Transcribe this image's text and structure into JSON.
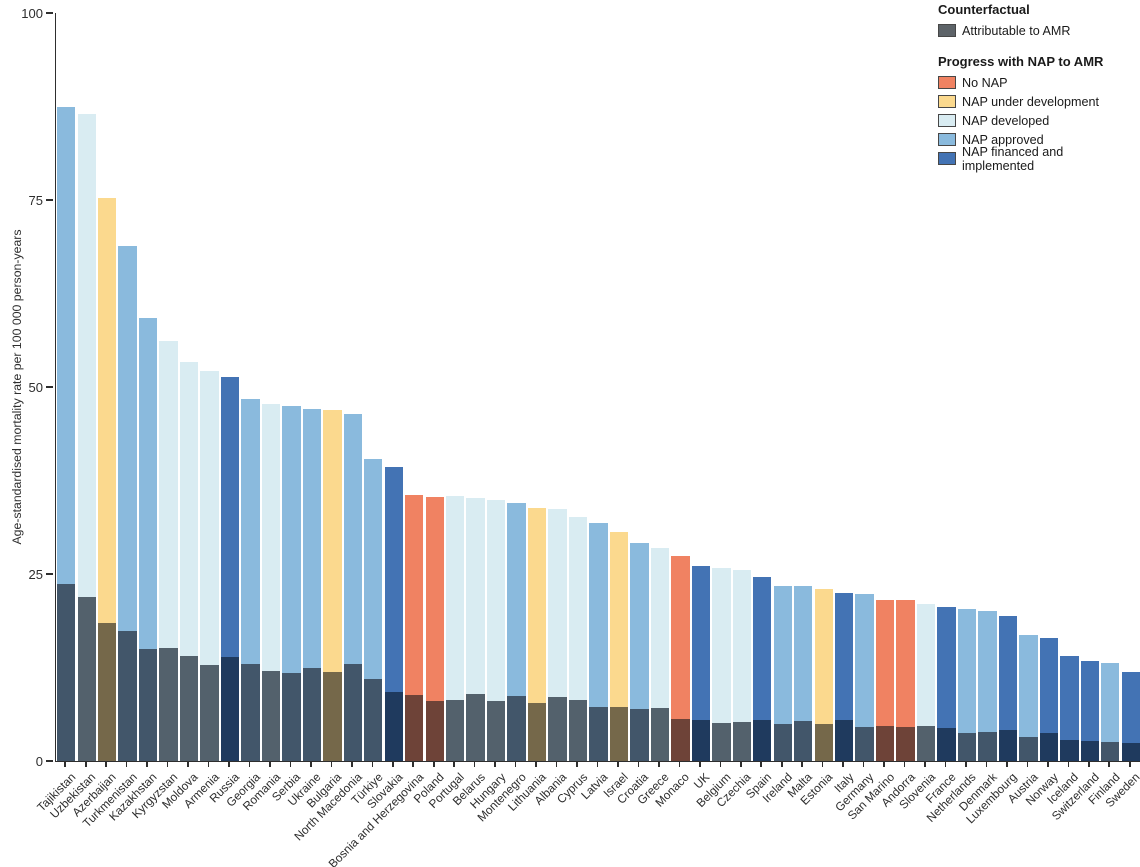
{
  "colors": {
    "axis": "#2e2e2e",
    "nap_fill": {
      "no_nap": "#f08262",
      "under_development": "#fbd98e",
      "developed": "#d9ecf2",
      "approved": "#8abadd",
      "financed": "#4373b4"
    },
    "attributable_overlay": {
      "no_nap": "#6e4338",
      "under_development": "#75684a",
      "developed": "#53616c",
      "approved": "#42566a",
      "financed": "#1f3a5e"
    },
    "attributable_legend_swatch": "#5d6368",
    "legend_swatch_border": "#474747"
  },
  "legend": {
    "counterfactual_title": "Counterfactual",
    "counterfactual_items": [
      {
        "key": "attributable",
        "label": "Attributable to AMR"
      }
    ],
    "nap_title": "Progress with NAP to AMR",
    "nap_items": [
      {
        "key": "no_nap",
        "label": "No NAP"
      },
      {
        "key": "under_development",
        "label": "NAP under development"
      },
      {
        "key": "developed",
        "label": "NAP developed"
      },
      {
        "key": "approved",
        "label": "NAP approved"
      },
      {
        "key": "financed",
        "label": "NAP financed and implemented"
      }
    ]
  },
  "chart_data": {
    "type": "bar",
    "subtype": "stacked-overlay",
    "title": "",
    "xlabel": "",
    "ylabel": "Age-standardised mortality rate per 100 000 person-years",
    "ylim": [
      0,
      100
    ],
    "yticks": [
      0,
      25,
      50,
      75,
      100
    ],
    "grid": false,
    "legend_position": "top-right",
    "categories": [
      "Tajikistan",
      "Uzbekistan",
      "Azerbaijan",
      "Turkmenistan",
      "Kazakhstan",
      "Kyrgyzstan",
      "Moldova",
      "Armenia",
      "Russia",
      "Georgia",
      "Romania",
      "Serbia",
      "Ukraine",
      "Bulgaria",
      "North Macedonia",
      "Türkiye",
      "Slovakia",
      "Bosnia and Herzegovina",
      "Poland",
      "Portugal",
      "Belarus",
      "Hungary",
      "Montenegro",
      "Lithuania",
      "Albania",
      "Cyprus",
      "Latvia",
      "Israel",
      "Croatia",
      "Greece",
      "Monaco",
      "UK",
      "Belgium",
      "Czechia",
      "Spain",
      "Ireland",
      "Malta",
      "Estonia",
      "Italy",
      "Germany",
      "San Marino",
      "Andorra",
      "Slovenia",
      "France",
      "Netherlands",
      "Denmark",
      "Luxembourg",
      "Austria",
      "Norway",
      "Iceland",
      "Switzerland",
      "Finland",
      "Sweden"
    ],
    "nap_status": [
      "approved",
      "developed",
      "under_development",
      "approved",
      "approved",
      "developed",
      "developed",
      "developed",
      "financed",
      "approved",
      "developed",
      "approved",
      "approved",
      "under_development",
      "approved",
      "approved",
      "financed",
      "no_nap",
      "no_nap",
      "developed",
      "developed",
      "developed",
      "approved",
      "under_development",
      "developed",
      "developed",
      "approved",
      "under_development",
      "approved",
      "developed",
      "no_nap",
      "financed",
      "developed",
      "developed",
      "financed",
      "approved",
      "approved",
      "under_development",
      "financed",
      "approved",
      "no_nap",
      "no_nap",
      "developed",
      "financed",
      "approved",
      "approved",
      "financed",
      "approved",
      "financed",
      "financed",
      "financed",
      "approved",
      "financed"
    ],
    "series": [
      {
        "name": "Counterfactual (total)",
        "values": [
          87.5,
          86.5,
          75.3,
          68.9,
          59.2,
          56.2,
          53.3,
          52.2,
          51.4,
          48.4,
          47.7,
          47.5,
          47.0,
          46.9,
          46.4,
          40.4,
          39.3,
          35.5,
          35.3,
          35.4,
          35.1,
          34.9,
          34.5,
          33.8,
          33.7,
          32.6,
          31.8,
          30.6,
          29.1,
          28.5,
          27.4,
          26.1,
          25.8,
          25.5,
          24.6,
          23.4,
          23.4,
          23.0,
          22.5,
          22.3,
          21.5,
          21.5,
          21.0,
          20.6,
          20.3,
          20.0,
          19.4,
          16.8,
          16.4,
          14.1,
          13.4,
          13.1,
          11.9
        ]
      },
      {
        "name": "Attributable to AMR",
        "values": [
          23.7,
          21.9,
          18.4,
          17.4,
          15.0,
          15.1,
          14.0,
          12.9,
          13.9,
          13.0,
          12.1,
          11.8,
          12.5,
          11.9,
          13.0,
          10.9,
          9.2,
          8.8,
          8.0,
          8.1,
          9.0,
          8.0,
          8.7,
          7.7,
          8.5,
          8.2,
          7.2,
          7.2,
          6.9,
          7.1,
          5.6,
          5.5,
          5.1,
          5.2,
          5.5,
          4.9,
          5.4,
          4.9,
          5.5,
          4.5,
          4.7,
          4.6,
          4.7,
          4.4,
          3.7,
          3.9,
          4.1,
          3.2,
          3.8,
          2.8,
          2.7,
          2.6,
          2.4
        ]
      }
    ],
    "ytick_labels": [
      "0",
      "25",
      "50",
      "75",
      "100"
    ]
  }
}
